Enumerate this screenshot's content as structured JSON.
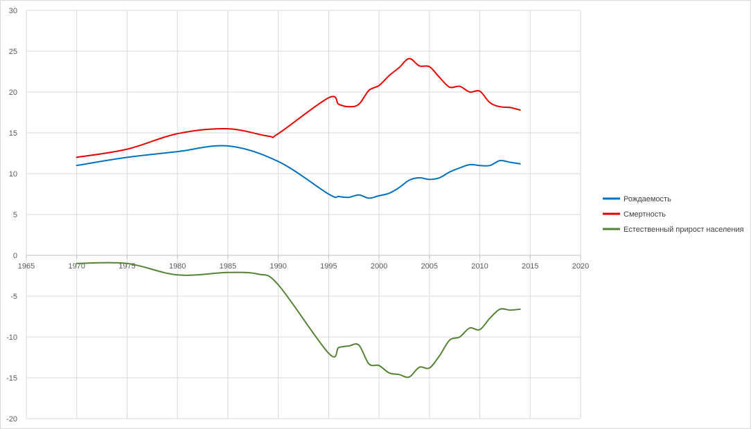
{
  "chart_data": {
    "type": "line",
    "title": "",
    "xlabel": "",
    "ylabel": "",
    "xlim": [
      1965,
      2020
    ],
    "ylim": [
      -20,
      30
    ],
    "x_ticks": [
      1965,
      1970,
      1975,
      1980,
      1985,
      1990,
      1995,
      2000,
      2005,
      2010,
      2015,
      2020
    ],
    "y_ticks": [
      -20,
      -15,
      -10,
      -5,
      0,
      5,
      10,
      15,
      20,
      25,
      30
    ],
    "grid": true,
    "legend_position": "right",
    "series": [
      {
        "name": "Рождаемость",
        "color": "#0070c0",
        "points": [
          [
            1970,
            11.0
          ],
          [
            1975,
            12.0
          ],
          [
            1980,
            12.7
          ],
          [
            1985,
            13.4
          ],
          [
            1990,
            11.5
          ],
          [
            1995,
            7.5
          ],
          [
            1996,
            7.2
          ],
          [
            1997,
            7.1
          ],
          [
            1998,
            7.4
          ],
          [
            1999,
            7.0
          ],
          [
            2000,
            7.3
          ],
          [
            2001,
            7.6
          ],
          [
            2002,
            8.3
          ],
          [
            2003,
            9.2
          ],
          [
            2004,
            9.5
          ],
          [
            2005,
            9.3
          ],
          [
            2006,
            9.5
          ],
          [
            2007,
            10.2
          ],
          [
            2008,
            10.7
          ],
          [
            2009,
            11.1
          ],
          [
            2010,
            11.0
          ],
          [
            2011,
            11.0
          ],
          [
            2012,
            11.6
          ],
          [
            2013,
            11.4
          ],
          [
            2014,
            11.2
          ]
        ]
      },
      {
        "name": "Смертность",
        "color": "#e50000",
        "points": [
          [
            1970,
            12.0
          ],
          [
            1975,
            13.0
          ],
          [
            1980,
            14.9
          ],
          [
            1985,
            15.5
          ],
          [
            1989,
            14.6
          ],
          [
            1990,
            14.9
          ],
          [
            1995,
            19.3
          ],
          [
            1996,
            18.5
          ],
          [
            1997,
            18.2
          ],
          [
            1998,
            18.5
          ],
          [
            1999,
            20.2
          ],
          [
            2000,
            20.8
          ],
          [
            2001,
            22.0
          ],
          [
            2002,
            23.0
          ],
          [
            2003,
            24.1
          ],
          [
            2004,
            23.2
          ],
          [
            2005,
            23.1
          ],
          [
            2006,
            21.8
          ],
          [
            2007,
            20.6
          ],
          [
            2008,
            20.7
          ],
          [
            2009,
            20.0
          ],
          [
            2010,
            20.1
          ],
          [
            2011,
            18.7
          ],
          [
            2012,
            18.2
          ],
          [
            2013,
            18.1
          ],
          [
            2014,
            17.8
          ]
        ]
      },
      {
        "name": "Естественный прирост населения",
        "color": "#548235",
        "points": [
          [
            1970,
            -1.0
          ],
          [
            1975,
            -1.0
          ],
          [
            1980,
            -2.4
          ],
          [
            1985,
            -2.1
          ],
          [
            1988,
            -2.3
          ],
          [
            1990,
            -3.6
          ],
          [
            1995,
            -12.0
          ],
          [
            1996,
            -11.3
          ],
          [
            1997,
            -11.1
          ],
          [
            1998,
            -11.0
          ],
          [
            1999,
            -13.3
          ],
          [
            2000,
            -13.5
          ],
          [
            2001,
            -14.4
          ],
          [
            2002,
            -14.6
          ],
          [
            2003,
            -14.9
          ],
          [
            2004,
            -13.7
          ],
          [
            2005,
            -13.8
          ],
          [
            2006,
            -12.3
          ],
          [
            2007,
            -10.4
          ],
          [
            2008,
            -10.0
          ],
          [
            2009,
            -8.9
          ],
          [
            2010,
            -9.1
          ],
          [
            2011,
            -7.7
          ],
          [
            2012,
            -6.6
          ],
          [
            2013,
            -6.7
          ],
          [
            2014,
            -6.6
          ]
        ]
      }
    ]
  }
}
